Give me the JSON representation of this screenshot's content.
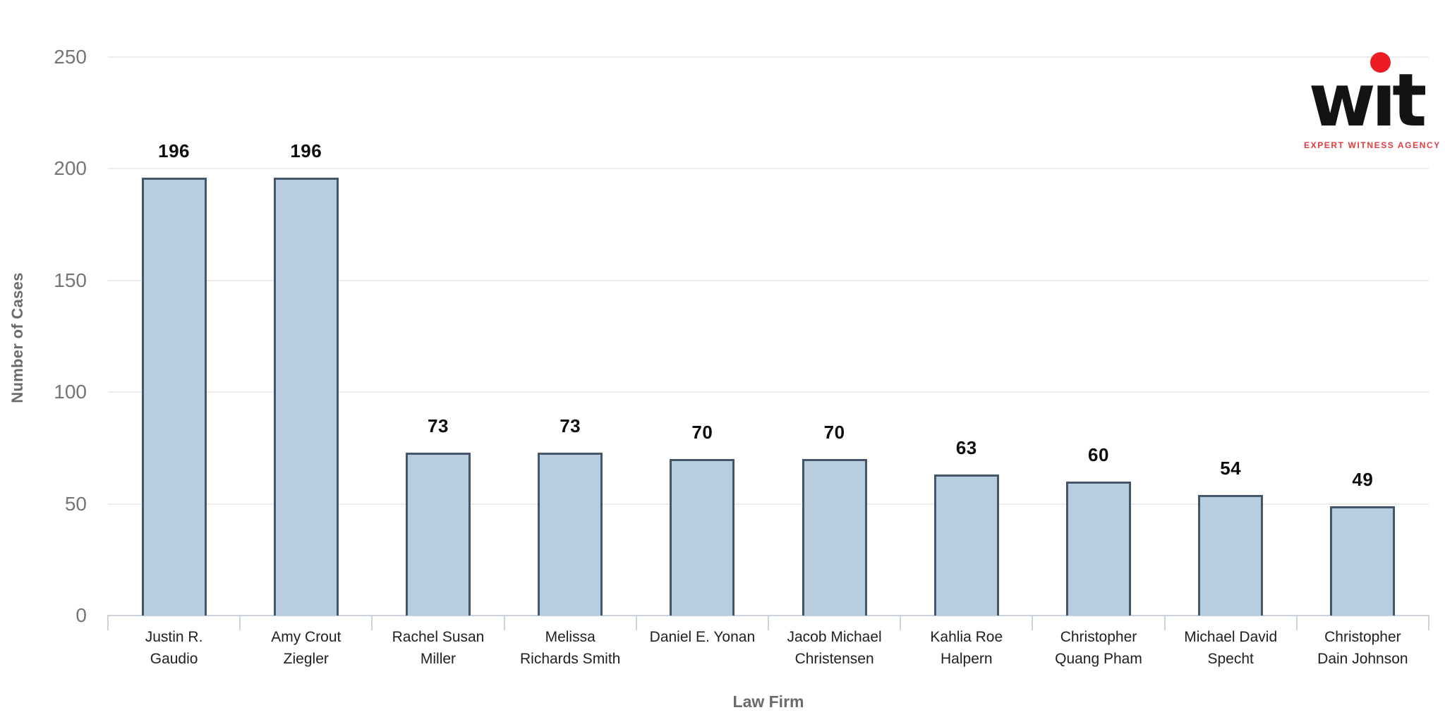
{
  "logo": {
    "word": "wit",
    "tagline": "EXPERT WITNESS AGENCY",
    "dot_color": "#ed1c24",
    "word_color": "#131313",
    "tagline_color": "#e23b3e"
  },
  "chart_data": {
    "type": "bar",
    "title": "",
    "xlabel": "Law Firm",
    "ylabel": "Number of Cases",
    "categories": [
      "Justin R. Gaudio",
      "Amy Crout Ziegler",
      "Rachel Susan Miller",
      "Melissa Richards Smith",
      "Daniel E. Yonan",
      "Jacob Michael Christensen",
      "Kahlia Roe Halpern",
      "Christopher Quang Pham",
      "Michael David Specht",
      "Christopher Dain Johnson"
    ],
    "category_lines": [
      [
        "Justin R.",
        "Gaudio"
      ],
      [
        "Amy Crout",
        "Ziegler"
      ],
      [
        "Rachel Susan",
        "Miller"
      ],
      [
        "Melissa",
        "Richards Smith"
      ],
      [
        "Daniel E. Yonan"
      ],
      [
        "Jacob Michael",
        "Christensen"
      ],
      [
        "Kahlia Roe",
        "Halpern"
      ],
      [
        "Christopher",
        "Quang Pham"
      ],
      [
        "Michael David",
        "Specht"
      ],
      [
        "Christopher",
        "Dain Johnson"
      ]
    ],
    "values": [
      196,
      196,
      73,
      73,
      70,
      70,
      63,
      60,
      54,
      49
    ],
    "value_labels": [
      "196",
      "196",
      "73",
      "73",
      "70",
      "70",
      "63",
      "60",
      "54",
      "49"
    ],
    "yticks": [
      0,
      50,
      100,
      150,
      200,
      250
    ],
    "ylim": [
      0,
      250
    ],
    "grid": true,
    "legend": false,
    "bar_fill_color": "#b8cede",
    "bar_border_color": "#44576a",
    "gridline_color": "#ececec",
    "axis_line_color": "#ccd3da",
    "tick_label_color": "#757575",
    "axis_title_color": "#6a6a6a"
  }
}
